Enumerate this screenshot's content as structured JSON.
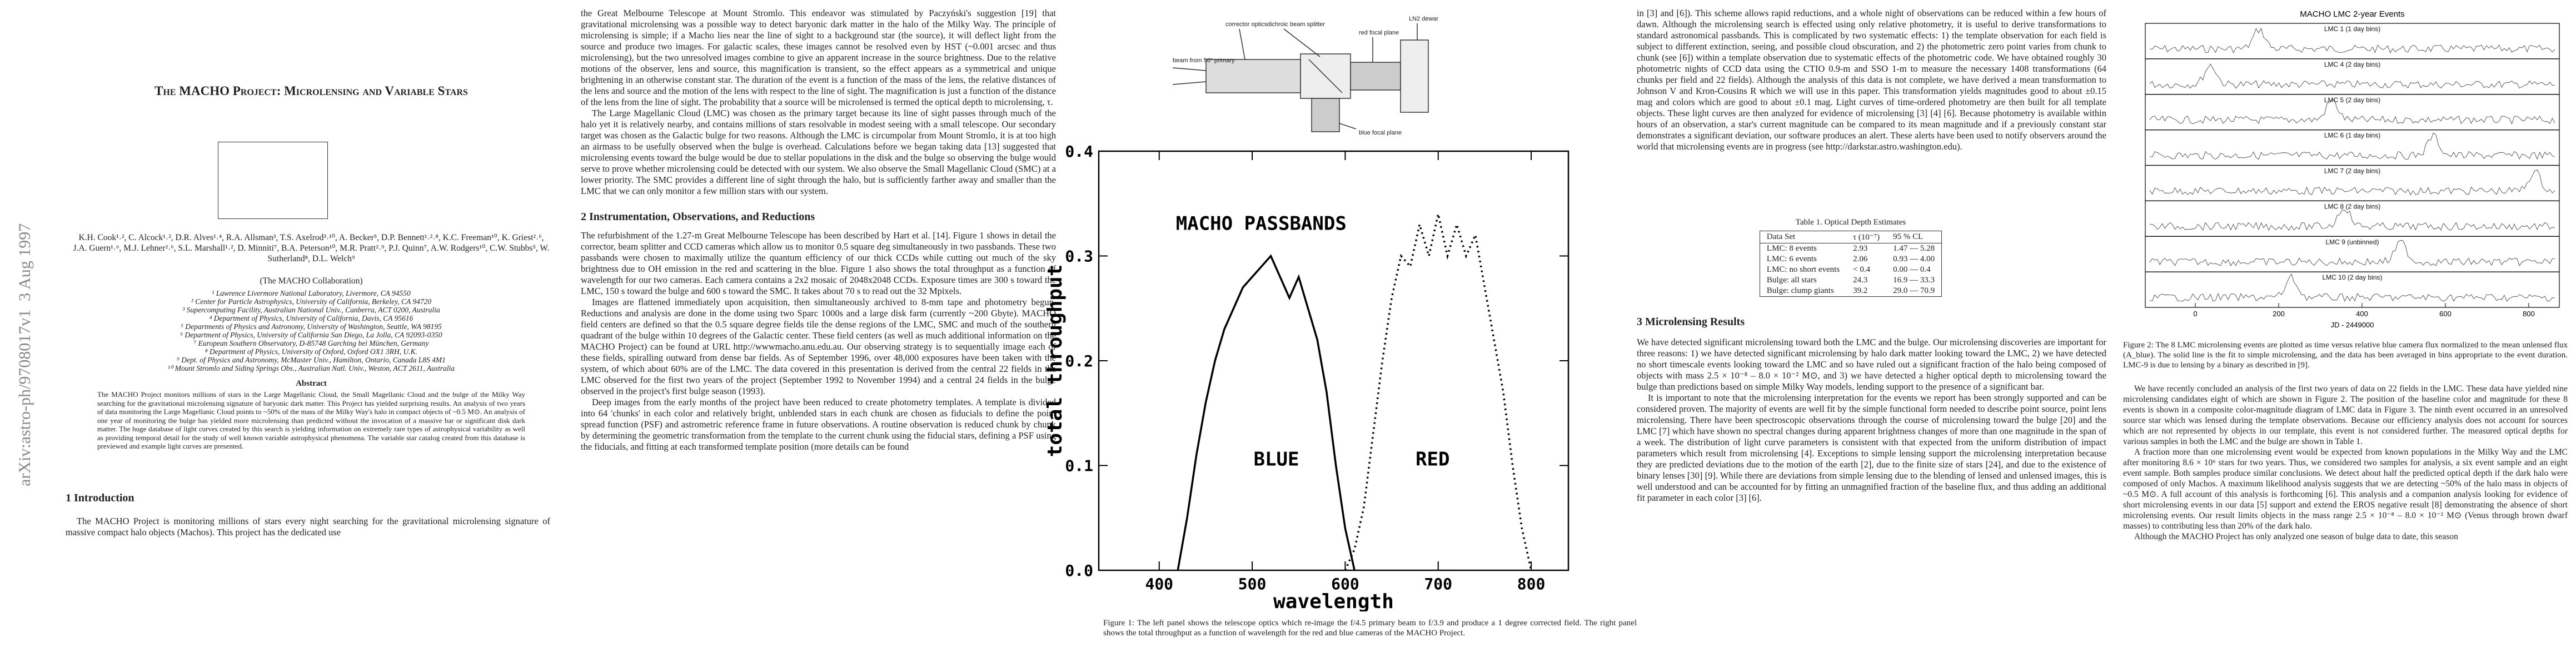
{
  "side_stamp": "arXiv:astro-ph/9708017v1  3 Aug 1997",
  "page1": {
    "title": "The MACHO Project: Microlensing and Variable Stars",
    "authors": "K.H. Cook¹˒², C. Alcock¹˒², D.R. Alves¹˒⁴, R.A. Allsman³, T.S. Axelrod³˒¹⁰, A. Becker⁵, D.P. Bennett¹˒²˒⁸, K.C. Freeman¹⁰, K. Griest²˒⁶, J.A. Guern¹˒⁶, M.J. Lehner²˒⁶, S.L. Marshall¹˒², D. Minniti⁷, B.A. Peterson¹⁰, M.R. Pratt²˒⁹, P.J. Quinn⁷, A.W. Rodgers¹⁰, C.W. Stubbs⁵, W. Sutherland⁸, D.L. Welch⁹",
    "collaboration": "(The MACHO Collaboration)",
    "affiliations": [
      "¹ Lawrence Livermore National Laboratory, Livermore, CA 94550",
      "² Center for Particle Astrophysics, University of California, Berkeley, CA 94720",
      "³ Supercomputing Facility, Australian National Univ., Canberra, ACT 0200, Australia",
      "⁴ Department of Physics, University of California, Davis, CA 95616",
      "⁵ Departments of Physics and Astronomy, University of Washington, Seattle, WA 98195",
      "⁶ Department of Physics, University of California San Diego, La Jolla, CA 92093-0350",
      "⁷ European Southern Observatory, D-85748 Garching bei München, Germany",
      "⁸ Department of Physics, University of Oxford, Oxford OX1 3RH, U.K.",
      "⁹ Dept. of Physics and Astronomy, McMaster Univ., Hamilton, Ontario, Canada L8S 4M1",
      "¹⁰ Mount Stromlo and Siding Springs Obs., Australian Natl. Univ., Weston, ACT 2611, Australia"
    ],
    "abstract_heading": "Abstract",
    "abstract": "The MACHO Project monitors millions of stars in the Large Magellanic Cloud, the Small Magellanic Cloud and the bulge of the Milky Way searching for the gravitational microlensing signature of baryonic dark matter. This Project has yielded surprising results. An analysis of two years of data monitoring the Large Magellanic Cloud points to ~50% of the mass of the Milky Way's halo in compact objects of ~0.5 M⊙. An analysis of one year of monitoring the bulge has yielded more microlensing than predicted without the invocation of a massive bar or significant disk dark matter. The huge database of light curves created by this search is yielding information on extremely rare types of astrophysical variability as well as providing temporal detail for the study of well known variable astrophysical phenomena. The variable star catalog created from this database is previewed and example light curves are presented.",
    "intro_heading": "1   Introduction",
    "intro": "The MACHO Project is monitoring millions of stars every night searching for the gravitational microlensing signature of massive compact halo objects (Machos). This project has the dedicated use"
  },
  "page2": {
    "paragraphs": [
      "the Great Melbourne Telescope at Mount Stromlo. This endeavor was stimulated by Paczyński's suggestion [19] that gravitational microlensing was a possible way to detect baryonic dark matter in the halo of the Milky Way. The principle of microlensing is simple; if a Macho lies near the line of sight to a background star (the source), it will deflect light from the source and produce two images. For galactic scales, these images cannot be resolved even by HST (~0.001 arcsec and thus microlensing), but the two unresolved images combine to give an apparent increase in the source brightness. Due to the relative motions of the observer, lens and source, this magnification is transient, so the effect appears as a symmetrical and unique brightening in an otherwise constant star. The duration of the event is a function of the mass of the lens, the relative distances of the lens and source and the motion of the lens with respect to the line of sight. The magnification is just a function of the distance of the lens from the line of sight. The probability that a source will be microlensed is termed the optical depth to microlensing, τ.",
      "The Large Magellanic Cloud (LMC) was chosen as the primary target because its line of sight passes through much of the halo yet it is relatively nearby, and contains millions of stars resolvable in modest seeing with a small telescope. Our secondary target was chosen as the Galactic bulge for two reasons. Although the LMC is circumpolar from Mount Stromlo, it is at too high an airmass to be usefully observed when the bulge is overhead. Calculations before we began taking data [13] suggested that microlensing events toward the bulge would be due to stellar populations in the disk and the bulge so observing the bulge would serve to prove whether microlensing could be detected with our system. We also observe the Small Magellanic Cloud (SMC) at a lower priority. The SMC provides a different line of sight through the halo, but is sufficiently farther away and smaller than the LMC that we can only monitor a few million stars with our system."
    ],
    "section2_heading": "2   Instrumentation, Observations, and Reductions",
    "section2": [
      "The refurbishment of the 1.27-m Great Melbourne Telescope has been described by Hart et al. [14]. Figure 1 shows in detail the corrector, beam splitter and CCD cameras which allow us to monitor 0.5 square deg simultaneously in two passbands. These two passbands were chosen to maximally utilize the quantum efficiency of our thick CCDs while cutting out much of the sky brightness due to OH emission in the red and scattering in the blue. Figure 1 also shows the total throughput as a function of wavelength for our two cameras. Each camera contains a 2x2 mosaic of 2048x2048 CCDs. Exposure times are 300 s toward the LMC, 150 s toward the bulge and 600 s toward the SMC. It takes about 70 s to read out the 32 Mpixels.",
      "Images are flattened immediately upon acquisition, then simultaneously archived to 8-mm tape and photometry begun. Reductions and analysis are done in the dome using two Sparc 1000s and a large disk farm (currently ~200 Gbyte). MACHO field centers are defined so that the 0.5 square degree fields tile the dense regions of the LMC, SMC and much of the southern quadrant of the bulge within 10 degrees of the Galactic center. These field centers (as well as much additional information on the MACHO Project) can be found at URL http://wwwmacho.anu.edu.au. Our observing strategy is to sequentially image each of these fields, spiralling outward from dense bar fields. As of September 1996, over 48,000 exposures have been taken with the system, of which about 60% are of the LMC. The data covered in this presentation is derived from the central 22 fields in the LMC observed for the first two years of the project (September 1992 to November 1994) and a central 24 fields in the bulge observed in the project's first bulge season (1993).",
      "Deep images from the early months of the project have been reduced to create photometry templates. A template is divided into 64 'chunks' in each color and relatively bright, unblended stars in each chunk are chosen as fiducials to define the point spread function (PSF) and astrometric reference frame in future observations. A routine observation is reduced chunk by chunk by determining the geometric transformation from the template to the current chunk using the fiducial stars, defining a PSF using the fiducials, and fitting at each transformed template position (more details can be found"
    ]
  },
  "figure1": {
    "diagram_labels": [
      "corrector optics",
      "dichroic beam splitter",
      "LN2 dewar",
      "red focal plane",
      "blue focal plane",
      "beam from 50\" primary"
    ],
    "caption": "Figure 1:  The left panel shows the telescope optics which re-image the f/4.5 primary beam to f/3.9 and produce a 1 degree corrected field. The right panel shows the total throughput as a function of wavelength for the red and blue cameras of the MACHO Project."
  },
  "chart_data": {
    "type": "line",
    "title": "MACHO PASSBANDS",
    "x_label": "wavelength",
    "y_label": "total throughput",
    "xlim": [
      335,
      840
    ],
    "ylim": [
      0,
      0.4
    ],
    "xticks": [
      400,
      500,
      600,
      700,
      800
    ],
    "yticks": [
      {
        "value": 0,
        "label": "0.0"
      },
      0.1,
      0.2,
      0.3,
      0.4
    ],
    "series": [
      {
        "name": "BLUE",
        "color": "#000000",
        "dash": "solid",
        "x": [
          420,
          430,
          440,
          450,
          460,
          470,
          480,
          490,
          500,
          510,
          520,
          530,
          540,
          550,
          560,
          570,
          580,
          590,
          600,
          610
        ],
        "values": [
          0,
          0.05,
          0.11,
          0.16,
          0.2,
          0.23,
          0.25,
          0.27,
          0.28,
          0.29,
          0.3,
          0.28,
          0.26,
          0.28,
          0.25,
          0.22,
          0.17,
          0.1,
          0.04,
          0
        ]
      },
      {
        "name": "RED",
        "color": "#000000",
        "dash": "dotted",
        "x": [
          600,
          610,
          620,
          630,
          640,
          650,
          660,
          670,
          680,
          690,
          700,
          710,
          720,
          730,
          740,
          750,
          760,
          770,
          780,
          790,
          800
        ],
        "values": [
          0,
          0.02,
          0.06,
          0.13,
          0.2,
          0.26,
          0.3,
          0.29,
          0.33,
          0.3,
          0.34,
          0.3,
          0.33,
          0.3,
          0.32,
          0.27,
          0.22,
          0.17,
          0.1,
          0.04,
          0
        ]
      }
    ]
  },
  "page4": {
    "intro_paragraph": "in [3] and [6]). This scheme allows rapid reductions, and a whole night of observations can be reduced within a few hours of dawn. Although the microlensing search is effected using only relative photometry, it is useful to derive transformations to standard astronomical passbands. This is complicated by two systematic effects: 1) the template observation for each field is subject to different extinction, seeing, and possible cloud obscuration, and 2) the photometric zero point varies from chunk to chunk (see [6]) within a template observation due to systematic effects of the photometric code. We have obtained roughly 30 photometric nights of CCD data using the CTIO 0.9-m and SSO 1-m to measure the necessary 1408 transformations (64 chunks per field and 22 fields). Although the analysis of this data is not complete, we have derived a mean transformation to Johnson V and Kron-Cousins R which we will use in this paper. This transformation yields magnitudes good to about ±0.15 mag and colors which are good to about ±0.1 mag. Light curves of time-ordered photometry are then built for all template objects. These light curves are then analyzed for evidence of microlensing [3] [4] [6]. Because photometry is available within hours of an observation, a star's current magnitude can be compared to its mean magnitude and if a previously constant star demonstrates a significant deviation, our software produces an alert. These alerts have been used to notify observers around the world that microlensing events are in progress (see http://darkstar.astro.washington.edu).",
    "table": {
      "caption": "Table 1.  Optical Depth Estimates",
      "header": [
        "Data Set",
        "τ (10⁻⁷)",
        "95 % CL"
      ],
      "rows": [
        [
          "LMC: 8 events",
          "2.93",
          "1.47 — 5.28"
        ],
        [
          "LMC: 6 events",
          "2.06",
          "0.93 — 4.00"
        ],
        [
          "LMC: no short events",
          "< 0.4",
          "0.00 — 0.4"
        ],
        [
          "Bulge: all stars",
          "24.3",
          "16.9 — 33.3"
        ],
        [
          "Bulge: clump giants",
          "39.2",
          "29.0 — 70.9"
        ]
      ]
    },
    "section3_heading": "3   Microlensing Results",
    "section3": [
      "We have detected significant microlensing toward both the LMC and the bulge. Our microlensing discoveries are important for three reasons: 1) we have detected significant microlensing by halo dark matter looking toward the LMC, 2) we have detected no short timescale events looking toward the LMC and so have ruled out a significant fraction of the halo being composed of objects with mass 2.5 × 10⁻⁸ – 8.0 × 10⁻² M⊙, and 3) we have detected a higher optical depth to microlensing toward the bulge than predictions based on simple Milky Way models, lending support to the presence of a significant bar.",
      "It is important to note that the microlensing interpretation for the events we report has been strongly supported and can be considered proven. The majority of events are well fit by the simple functional form needed to describe point source, point lens microlensing. There have been spectroscopic observations through the course of microlensing toward the bulge [20] and the LMC [7] which have shown no spectral changes during apparent brightness changes of more than one magnitude in the span of a week. The distribution of light curve parameters is consistent with that expected from the uniform distribution of impact parameters which result from microlensing [4]. Exceptions to simple lensing support the microlensing interpretation because they are predicted deviations due to the motion of the earth [2], due to the finite size of stars [24], and due to the existence of binary lenses [30] [9]. While there are deviations from simple lensing due to the blending of lensed and unlensed images, this is well understood and can be accounted for by fitting an unmagnified fraction of the baseline flux, and thus adding an additional fit parameter in each color [3] [6]."
    ]
  },
  "figure2": {
    "title": "MACHO LMC 2-year Events",
    "panels": [
      "LMC 1 (1 day bins)",
      "LMC 4 (2 day bins)",
      "LMC 5 (2 day bins)",
      "LMC 6 (1 day bins)",
      "LMC 7 (2 day bins)",
      "LMC 8 (2 day bins)",
      "LMC 9 (unbinned)",
      "LMC 10 (2 day bins)"
    ],
    "x_ticks": [
      "0",
      "200",
      "400",
      "600",
      "800"
    ],
    "x_label": "JD - 2449000",
    "caption": "Figure 2:  The 8 LMC microlensing events are plotted as time versus relative blue camera flux normalized to the mean unlensed flux (A_blue). The solid line is the fit to simple microlensing, and the data has been averaged in bins appropriate to the event duration. LMC-9 is due to lensing by a binary as described in [9].",
    "following": [
      "We have recently concluded an analysis of the first two years of data on 22 fields in the LMC. These data have yielded nine microlensing candidates eight of which are shown in Figure 2. The position of the baseline color and magnitude for these 8 events is shown in a composite color-magnitude diagram of LMC data in Figure 3. The ninth event occurred in an unresolved source star which was lensed during the template observations. Because our efficiency analysis does not account for sources which are not represented by objects in our template, this event is not considered further. The measured optical depths for various samples in both the LMC and the bulge are shown in Table 1.",
      "A fraction more than one microlensing event would be expected from known populations in the Milky Way and the LMC after monitoring 8.6 × 10⁶ stars for two years. Thus, we considered two samples for analysis, a six event sample and an eight event sample. Both samples produce similar conclusions. We detect about half the predicted optical depth if the dark halo were composed of only Machos. A maximum likelihood analysis suggests that we are detecting ~50% of the halo mass in objects of ~0.5 M⊙. A full account of this analysis is forthcoming [6]. This analysis and a companion analysis looking for evidence of short microlensing events in our data [5] support and extend the EROS negative result [8] demonstrating the absence of short microlensing events. Our result limits objects in the mass range 2.5 × 10⁻⁸ – 8.0 × 10⁻² M⊙ (Venus through brown dwarf masses) to contributing less than 20% of the dark halo.",
      "Although the MACHO Project has only analyzed one season of bulge data to date, this season"
    ]
  }
}
